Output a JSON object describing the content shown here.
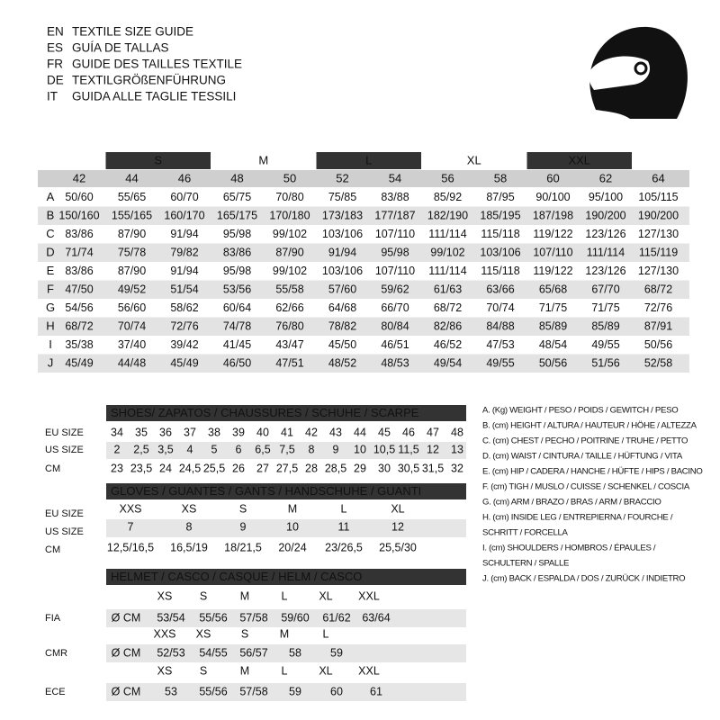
{
  "header": {
    "lines": [
      {
        "code": "EN",
        "text": "TEXTILE SIZE GUIDE"
      },
      {
        "code": "ES",
        "text": "GUÍA DE TALLAS"
      },
      {
        "code": "FR",
        "text": "GUIDE DES TAILLES TEXTILE"
      },
      {
        "code": "DE",
        "text": "TEXTILGRÖßENFÜHRUNG"
      },
      {
        "code": "IT",
        "text": "GUIDA ALLE TAGLIE TESSILI"
      }
    ]
  },
  "size_table": {
    "groups": [
      "S",
      "M",
      "L",
      "XL",
      "XXL"
    ],
    "sizes": [
      "42",
      "44",
      "46",
      "48",
      "50",
      "52",
      "54",
      "56",
      "58",
      "60",
      "62",
      "64"
    ],
    "rows": [
      {
        "label": "A",
        "values": [
          "50/60",
          "55/65",
          "60/70",
          "65/75",
          "70/80",
          "75/85",
          "83/88",
          "85/92",
          "87/95",
          "90/100",
          "95/100",
          "105/115"
        ]
      },
      {
        "label": "B",
        "values": [
          "150/160",
          "155/165",
          "160/170",
          "165/175",
          "170/180",
          "173/183",
          "177/187",
          "182/190",
          "185/195",
          "187/198",
          "190/200",
          "190/200"
        ]
      },
      {
        "label": "C",
        "values": [
          "83/86",
          "87/90",
          "91/94",
          "95/98",
          "99/102",
          "103/106",
          "107/110",
          "111/114",
          "115/118",
          "119/122",
          "123/126",
          "127/130"
        ]
      },
      {
        "label": "D",
        "values": [
          "71/74",
          "75/78",
          "79/82",
          "83/86",
          "87/90",
          "91/94",
          "95/98",
          "99/102",
          "103/106",
          "107/110",
          "111/114",
          "115/119"
        ]
      },
      {
        "label": "E",
        "values": [
          "83/86",
          "87/90",
          "91/94",
          "95/98",
          "99/102",
          "103/106",
          "107/110",
          "111/114",
          "115/118",
          "119/122",
          "123/126",
          "127/130"
        ]
      },
      {
        "label": "F",
        "values": [
          "47/50",
          "49/52",
          "51/54",
          "53/56",
          "55/58",
          "57/60",
          "59/62",
          "61/63",
          "63/66",
          "65/68",
          "67/70",
          "68/72"
        ]
      },
      {
        "label": "G",
        "values": [
          "54/56",
          "56/60",
          "58/62",
          "60/64",
          "62/66",
          "64/68",
          "66/70",
          "68/72",
          "70/74",
          "71/75",
          "71/75",
          "72/76"
        ]
      },
      {
        "label": "H",
        "values": [
          "68/72",
          "70/74",
          "72/76",
          "74/78",
          "76/80",
          "78/82",
          "80/84",
          "82/86",
          "84/88",
          "85/89",
          "85/89",
          "87/91"
        ]
      },
      {
        "label": "I",
        "values": [
          "35/38",
          "37/40",
          "39/42",
          "41/45",
          "43/47",
          "45/50",
          "46/51",
          "46/52",
          "47/53",
          "48/54",
          "49/55",
          "50/56"
        ]
      },
      {
        "label": "J",
        "values": [
          "45/49",
          "44/48",
          "45/49",
          "46/50",
          "47/51",
          "48/52",
          "48/53",
          "49/54",
          "49/55",
          "50/56",
          "51/56",
          "52/58"
        ]
      }
    ]
  },
  "shoes": {
    "title": "SHOES/ ZAPATOS / CHAUSSURES / SCHUHE / SCARPE",
    "rows": [
      {
        "label": "EU SIZE",
        "values": [
          "34",
          "35",
          "36",
          "37",
          "38",
          "39",
          "40",
          "41",
          "42",
          "43",
          "44",
          "45",
          "46",
          "47",
          "48"
        ]
      },
      {
        "label": "US SIZE",
        "values": [
          "2",
          "2,5",
          "3,5",
          "4",
          "5",
          "6",
          "6,5",
          "7,5",
          "8",
          "9",
          "10",
          "10,5",
          "11,5",
          "12",
          "13"
        ]
      },
      {
        "label": "CM",
        "values": [
          "23",
          "23,5",
          "24",
          "24,5",
          "25,5",
          "26",
          "27",
          "27,5",
          "28",
          "28,5",
          "29",
          "30",
          "30,5",
          "31,5",
          "32"
        ]
      }
    ]
  },
  "gloves": {
    "title": "GLOVES / GUANTES / GANTS / HANDSCHUHE / GUANTI",
    "rows": [
      {
        "label": "EU SIZE",
        "values": [
          "XXS",
          "XS",
          "S",
          "M",
          "L",
          "XL"
        ]
      },
      {
        "label": "US SIZE",
        "values": [
          "7",
          "8",
          "9",
          "10",
          "11",
          "12"
        ]
      },
      {
        "label": "CM",
        "values": [
          "12,5/16,5",
          "16,5/19",
          "18/21,5",
          "20/24",
          "23/26,5",
          "25,5/30"
        ]
      }
    ]
  },
  "helmet": {
    "title": "HELMET / CASCO / CASQUE / HELM / CASCO",
    "blocks": [
      {
        "label": "FIA",
        "sizes": [
          "XS",
          "S",
          "M",
          "L",
          "XL",
          "XXL"
        ],
        "unit": "Ø CM",
        "values": [
          "53/54",
          "55/56",
          "57/58",
          "59/60",
          "61/62",
          "63/64"
        ]
      },
      {
        "label": "CMR",
        "sizes": [
          "XXS",
          "XS",
          "S",
          "M",
          "L"
        ],
        "unit": "Ø CM",
        "values": [
          "52/53",
          "54/55",
          "56/57",
          "58",
          "59"
        ]
      },
      {
        "label": "ECE",
        "sizes": [
          "XS",
          "S",
          "M",
          "L",
          "XL",
          "XXL"
        ],
        "unit": "Ø CM",
        "values": [
          "53",
          "55/56",
          "57/58",
          "59",
          "60",
          "61"
        ]
      }
    ]
  },
  "legend": {
    "lines": [
      "A. (Kg) WEIGHT / PESO / POIDS / GEWITCH / PESO",
      "B. (cm) HEIGHT / ALTURA / HAUTEUR / HÖHE / ALTEZZA",
      "C. (cm) CHEST / PECHO / POITRINE / TRUHE / PETTO",
      "D. (cm) WAIST / CINTURA / TAILLE / HÜFTUNG / VITA",
      "E. (cm) HIP / CADERA / HANCHE / HÜFTE / HIPS / BACINO",
      "F. (cm) TIGH / MUSLO / CUISSE / SCHENKEL / COSCIA",
      "G. (cm) ARM  / BRAZO / BRAS / ARM / BRACCIO",
      "H. (cm) INSIDE LEG / ENTREPIERNA / FOURCHE /",
      "SCHRITT / FORCELLA",
      "I.  (cm) SHOULDERS / HOMBROS / ÉPAULES /",
      "SCHULTERN / SPALLE",
      "J. (cm) BACK / ESPALDA / DOS / ZURÜCK / INDIETRO"
    ]
  }
}
